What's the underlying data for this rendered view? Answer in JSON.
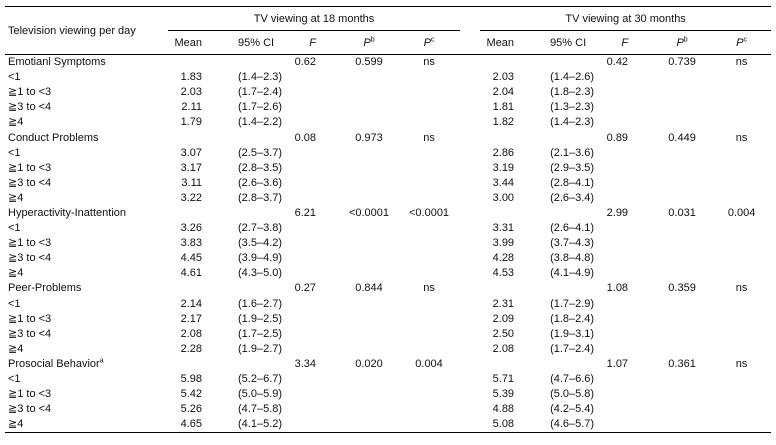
{
  "header": {
    "row_label": "Television viewing per day",
    "group_18": "TV viewing at 18 months",
    "group_30": "TV viewing at 30 months",
    "col_mean": "Mean",
    "col_ci": "95% CI",
    "col_f": "F",
    "col_pb_main": "P",
    "col_pb_sup": "b",
    "col_pc_main": "P",
    "col_pc_sup": "c"
  },
  "sections": [
    {
      "name": "Emotianl Symptoms",
      "name_sup": "",
      "m18": {
        "F": "0.62",
        "Pb": "0.599",
        "Pc": "ns"
      },
      "m30": {
        "F": "0.42",
        "Pb": "0.739",
        "Pc": "ns"
      },
      "rows": [
        {
          "label": "<1",
          "mean18": "1.83",
          "ci18": "(1.4–2.3)",
          "mean30": "2.03",
          "ci30": "(1.4–2.6)"
        },
        {
          "label": "≧1 to <3",
          "mean18": "2.03",
          "ci18": "(1.7–2.4)",
          "mean30": "2.04",
          "ci30": "(1.8–2.3)"
        },
        {
          "label": "≧3 to <4",
          "mean18": "2.11",
          "ci18": "(1.7–2.6)",
          "mean30": "1.81",
          "ci30": "(1.3–2.3)"
        },
        {
          "label": "≧4",
          "mean18": "1.79",
          "ci18": "(1.4–2.2)",
          "mean30": "1.82",
          "ci30": "(1.4–2.3)"
        }
      ]
    },
    {
      "name": "Conduct Problems",
      "name_sup": "",
      "m18": {
        "F": "0.08",
        "Pb": "0.973",
        "Pc": "ns"
      },
      "m30": {
        "F": "0.89",
        "Pb": "0.449",
        "Pc": "ns"
      },
      "rows": [
        {
          "label": "<1",
          "mean18": "3.07",
          "ci18": "(2.5–3.7)",
          "mean30": "2.86",
          "ci30": "(2.1–3.6)"
        },
        {
          "label": "≧1 to <3",
          "mean18": "3.17",
          "ci18": "(2.8–3.5)",
          "mean30": "3.19",
          "ci30": "(2.9–3.5)"
        },
        {
          "label": "≧3 to <4",
          "mean18": "3.11",
          "ci18": "(2.6–3.6)",
          "mean30": "3.44",
          "ci30": "(2.8–4.1)"
        },
        {
          "label": "≧4",
          "mean18": "3.22",
          "ci18": "(2.8–3.7)",
          "mean30": "3.00",
          "ci30": "(2.6–3.4)"
        }
      ]
    },
    {
      "name": "Hyperactivity-Inattention",
      "name_sup": "",
      "m18": {
        "F": "6.21",
        "Pb": "<0.0001",
        "Pc": "<0.0001"
      },
      "m30": {
        "F": "2.99",
        "Pb": "0.031",
        "Pc": "0.004"
      },
      "rows": [
        {
          "label": "<1",
          "mean18": "3.26",
          "ci18": "(2.7–3.8)",
          "mean30": "3.31",
          "ci30": "(2.6–4.1)"
        },
        {
          "label": "≧1 to <3",
          "mean18": "3.83",
          "ci18": "(3.5–4.2)",
          "mean30": "3.99",
          "ci30": "(3.7–4.3)"
        },
        {
          "label": "≧3 to <4",
          "mean18": "4.45",
          "ci18": "(3.9–4.9)",
          "mean30": "4.28",
          "ci30": "(3.8–4.8)"
        },
        {
          "label": "≧4",
          "mean18": "4.61",
          "ci18": "(4.3–5.0)",
          "mean30": "4.53",
          "ci30": "(4.1–4.9)"
        }
      ]
    },
    {
      "name": "Peer-Problems",
      "name_sup": "",
      "m18": {
        "F": "0.27",
        "Pb": "0.844",
        "Pc": "ns"
      },
      "m30": {
        "F": "1.08",
        "Pb": "0.359",
        "Pc": "ns"
      },
      "rows": [
        {
          "label": "<1",
          "mean18": "2.14",
          "ci18": "(1.6–2.7)",
          "mean30": "2.31",
          "ci30": "(1.7–2.9)"
        },
        {
          "label": "≧1 to <3",
          "mean18": "2.17",
          "ci18": "(1.9–2.5)",
          "mean30": "2.09",
          "ci30": "(1.8–2.4)"
        },
        {
          "label": "≧3 to <4",
          "mean18": "2.08",
          "ci18": "(1.7–2.5)",
          "mean30": "2.50",
          "ci30": "(1.9–3.1)"
        },
        {
          "label": "≧4",
          "mean18": "2.28",
          "ci18": "(1.9–2.7)",
          "mean30": "2.08",
          "ci30": "(1.7–2.4)"
        }
      ]
    },
    {
      "name": "Prosocial Behavior",
      "name_sup": "a",
      "m18": {
        "F": "3.34",
        "Pb": "0.020",
        "Pc": "0.004"
      },
      "m30": {
        "F": "1.07",
        "Pb": "0.361",
        "Pc": "ns"
      },
      "rows": [
        {
          "label": "<1",
          "mean18": "5.98",
          "ci18": "(5.2–6.7)",
          "mean30": "5.71",
          "ci30": "(4.7–6.6)"
        },
        {
          "label": "≧1 to <3",
          "mean18": "5.42",
          "ci18": "(5.0–5.9)",
          "mean30": "5.39",
          "ci30": "(5.0–5.8)"
        },
        {
          "label": "≧3 to <4",
          "mean18": "5.26",
          "ci18": "(4.7–5.8)",
          "mean30": "4.88",
          "ci30": "(4.2–5.4)"
        },
        {
          "label": "≧4",
          "mean18": "4.65",
          "ci18": "(4.1–5.2)",
          "mean30": "5.08",
          "ci30": "(4.6–5.7)"
        }
      ]
    }
  ]
}
